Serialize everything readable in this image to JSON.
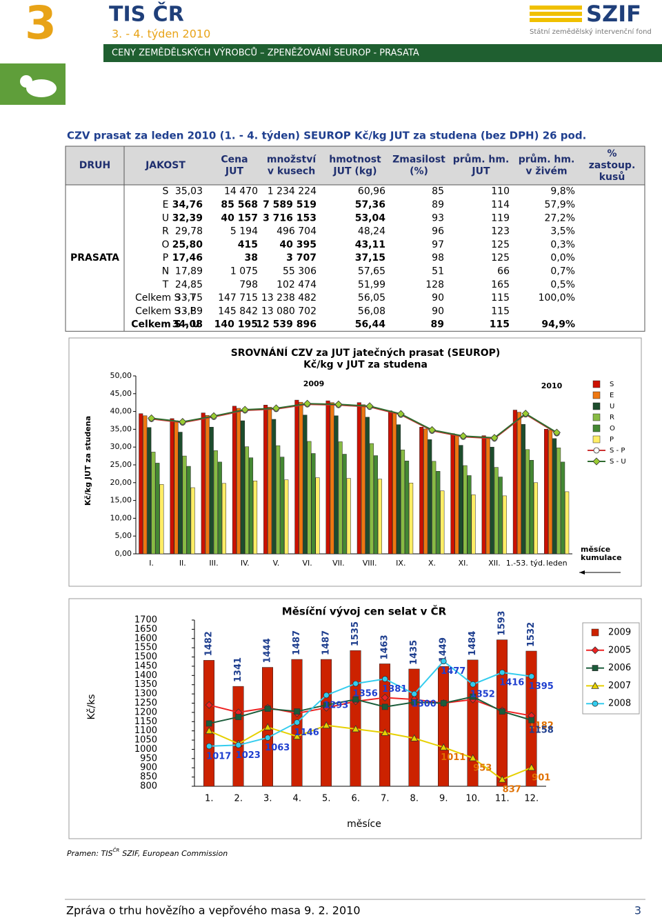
{
  "header": {
    "number": "3",
    "brand": "TIS ČR",
    "week": "3. - 4. týden 2010",
    "subtitle": "CENY ZEMĚDĚLSKÝCH VÝROBCŮ – ZPENĚŽOVÁNÍ SEUROP - PRASATA",
    "logo": "SZIF",
    "logo_sub": "Státní zemědělský intervenční fond"
  },
  "section_title": "CZV prasat za leden 2010 (1. - 4. týden) SEUROP Kč/kg JUT za studena (bez DPH) 26 pod.",
  "table": {
    "headers": [
      [
        "DRUH"
      ],
      [
        "JAKOST"
      ],
      [
        "Cena",
        "JUT"
      ],
      [
        "množství",
        "v kusech"
      ],
      [
        "hmotnost",
        "JUT (kg)"
      ],
      [
        "Zmasilost",
        "(%)"
      ],
      [
        "prům. hm.",
        "JUT"
      ],
      [
        "prům. hm.",
        "v živém"
      ],
      [
        "%",
        "zastoup.",
        "kusů"
      ]
    ],
    "group": "PRASATA",
    "rows": [
      [
        "S",
        "35,03",
        "14 470",
        "1 234 224",
        "60,96",
        "85",
        "110",
        "9,8%"
      ],
      [
        "E",
        "34,76",
        "85 568",
        "7 589 519",
        "57,36",
        "89",
        "114",
        "57,9%"
      ],
      [
        "U",
        "32,39",
        "40 157",
        "3 716 153",
        "53,04",
        "93",
        "119",
        "27,2%"
      ],
      [
        "R",
        "29,78",
        "5 194",
        "496 704",
        "48,24",
        "96",
        "123",
        "3,5%"
      ],
      [
        "O",
        "25,80",
        "415",
        "40 395",
        "43,11",
        "97",
        "125",
        "0,3%"
      ],
      [
        "P",
        "17,46",
        "38",
        "3 707",
        "37,15",
        "98",
        "125",
        "0,0%"
      ],
      [
        "N",
        "17,89",
        "1 075",
        "55 306",
        "57,65",
        "51",
        "66",
        "0,7%"
      ],
      [
        "T",
        "24,85",
        "798",
        "102 474",
        "51,99",
        "128",
        "165",
        "0,5%"
      ],
      [
        "Celkem S - T",
        "33,75",
        "147 715",
        "13 238 482",
        "56,05",
        "90",
        "115",
        "100,0%"
      ],
      [
        "Celkem S - P",
        "33,89",
        "145 842",
        "13 080 702",
        "56,08",
        "90",
        "115"
      ],
      [
        "Celkem S - U",
        "34,08",
        "140 195",
        "12 539 896",
        "56,44",
        "89",
        "115",
        "94,9%"
      ]
    ]
  },
  "chart1": {
    "type": "bar",
    "title": [
      "SROVNÁNÍ CZV za JUT jatečných prasat (SEUROP)",
      "Kč/kg v JUT za studena"
    ],
    "y_label": "Kč/kg JUT za studena",
    "annotations": [
      "2009",
      "2010"
    ],
    "x_note": [
      "měsíce",
      "kumulace"
    ],
    "categories": [
      "I.",
      "II.",
      "III.",
      "IV.",
      "V.",
      "VI.",
      "VII.",
      "VIII.",
      "IX.",
      "X.",
      "XI.",
      "XII.",
      "1.-53. týd.",
      "leden"
    ],
    "ylim": [
      0,
      50
    ],
    "yticks": [
      {
        "value": 0,
        "label": "0,00"
      },
      {
        "value": 5,
        "label": "5,00"
      },
      {
        "value": 10,
        "label": "10,00"
      },
      {
        "value": 15,
        "label": "15,00"
      },
      {
        "value": 20,
        "label": "20,00"
      },
      {
        "value": 25,
        "label": "25,00"
      },
      {
        "value": 30,
        "label": "30,00"
      },
      {
        "value": 35,
        "label": "35,00"
      },
      {
        "value": 40,
        "label": "40,00"
      },
      {
        "value": 45,
        "label": "45,00"
      },
      {
        "value": 50,
        "label": "50,00"
      }
    ],
    "series": [
      {
        "name": "S",
        "type": "bar",
        "color": "#cc1100",
        "values": [
          39.4,
          38.0,
          39.6,
          41.5,
          41.8,
          43.2,
          43.0,
          42.5,
          40.2,
          35.6,
          33.8,
          33.2,
          40.4,
          35.03
        ]
      },
      {
        "name": "E",
        "type": "bar",
        "color": "#ee7711",
        "values": [
          38.8,
          37.4,
          38.9,
          40.9,
          41.2,
          42.6,
          42.5,
          41.9,
          39.6,
          35.1,
          33.3,
          32.8,
          39.8,
          34.76
        ]
      },
      {
        "name": "U",
        "type": "bar",
        "color": "#1d4d2d",
        "values": [
          35.5,
          34.2,
          35.6,
          37.4,
          37.8,
          39.0,
          38.8,
          38.4,
          36.3,
          32.1,
          30.5,
          30.0,
          36.4,
          32.39
        ]
      },
      {
        "name": "R",
        "type": "bar",
        "color": "#88bb44",
        "values": [
          28.6,
          27.5,
          29.0,
          30.1,
          30.4,
          31.6,
          31.5,
          31.0,
          29.2,
          26.0,
          24.8,
          24.3,
          29.3,
          29.78
        ]
      },
      {
        "name": "O",
        "type": "bar",
        "color": "#448833",
        "values": [
          25.5,
          24.6,
          25.8,
          27.0,
          27.2,
          28.2,
          28.0,
          27.6,
          26.1,
          23.2,
          22.0,
          21.6,
          26.3,
          25.8
        ]
      },
      {
        "name": "P",
        "type": "bar",
        "color": "#ffee66",
        "values": [
          19.5,
          18.6,
          19.8,
          20.5,
          20.8,
          21.4,
          21.2,
          21.0,
          19.9,
          17.7,
          16.6,
          16.3,
          20.0,
          17.46
        ]
      },
      {
        "name": "S - P",
        "type": "line",
        "color": "#cc3333",
        "marker": "circle",
        "values": [
          37.9,
          36.9,
          38.5,
          40.3,
          40.7,
          42.0,
          41.8,
          41.3,
          39.1,
          34.6,
          32.9,
          32.4,
          39.2,
          33.89
        ]
      },
      {
        "name": "S - U",
        "type": "line",
        "color": "#2f6b2f",
        "marker": "diamond",
        "values": [
          38.1,
          37.1,
          38.7,
          40.5,
          40.9,
          42.2,
          42.0,
          41.5,
          39.3,
          34.8,
          33.1,
          32.6,
          39.4,
          34.08
        ]
      }
    ]
  },
  "chart2": {
    "type": "bar",
    "title": "Měsíční vývoj cen selat  v ČR",
    "y_label": "Kč/ks",
    "x_label": "měsíce",
    "categories": [
      "1.",
      "2.",
      "3.",
      "4.",
      "5.",
      "6.",
      "7.",
      "8.",
      "9.",
      "10.",
      "11.",
      "12."
    ],
    "ylim": [
      800,
      1700
    ],
    "yticks": [
      800,
      850,
      900,
      950,
      1000,
      1050,
      1100,
      1150,
      1200,
      1250,
      1300,
      1350,
      1400,
      1450,
      1500,
      1550,
      1600,
      1650,
      1700
    ],
    "series": [
      {
        "name": "2009",
        "type": "bar",
        "color": "#cc2200",
        "label_color": "#1f3f8f",
        "values": [
          1482,
          1341,
          1444,
          1487,
          1487,
          1535,
          1463,
          1435,
          1449,
          1484,
          1593,
          1532
        ],
        "value_labels": [
          "1482",
          "1341",
          "1444",
          "1487",
          "1487",
          "1535",
          "1463",
          "1435",
          "1449",
          "1484",
          "1593",
          "1532"
        ]
      },
      {
        "name": "2005",
        "type": "line",
        "color": "#ee2222",
        "marker": "diamond",
        "label_color": "#e07000",
        "values": [
          1240,
          1200,
          1225,
          1195,
          1225,
          1260,
          1280,
          1270,
          1250,
          1270,
          1210,
          1182
        ],
        "value_labels": [
          null,
          null,
          null,
          null,
          null,
          null,
          null,
          null,
          null,
          null,
          null,
          "1182"
        ]
      },
      {
        "name": "2006",
        "type": "line",
        "color": "#1a5c3a",
        "marker": "square",
        "label_color": "#1f3f8f",
        "values": [
          1140,
          1175,
          1220,
          1205,
          1240,
          1270,
          1230,
          1255,
          1250,
          1285,
          1205,
          1158
        ],
        "value_labels": [
          null,
          null,
          null,
          null,
          null,
          null,
          null,
          null,
          null,
          null,
          null,
          "1158"
        ]
      },
      {
        "name": "2007",
        "type": "line",
        "color": "#e6d000",
        "marker": "triangle",
        "label_color": "#e07000",
        "values": [
          1100,
          1030,
          1120,
          1070,
          1130,
          1110,
          1090,
          1060,
          1011,
          953,
          837,
          901
        ],
        "value_labels": [
          null,
          null,
          null,
          null,
          null,
          null,
          null,
          null,
          "1011",
          "953",
          "837",
          "901"
        ]
      },
      {
        "name": "2008",
        "type": "line",
        "color": "#33ccee",
        "marker": "circle",
        "label_color": "#1f3fcf",
        "values": [
          1017,
          1023,
          1063,
          1146,
          1293,
          1356,
          1381,
          1300,
          1477,
          1352,
          1416,
          1395
        ],
        "value_labels": [
          "1017",
          "1023",
          "1063",
          "1146",
          "1293",
          "1356",
          "1381",
          "1300",
          "1477",
          "1352",
          "1416",
          "1395"
        ]
      }
    ]
  },
  "source": [
    "Pramen: TIS",
    "ČR",
    "SZIF, European Commission"
  ],
  "footer": {
    "text": "Zpráva o trhu hovězího a vepřového masa 9. 2. 2010",
    "page": "3"
  }
}
